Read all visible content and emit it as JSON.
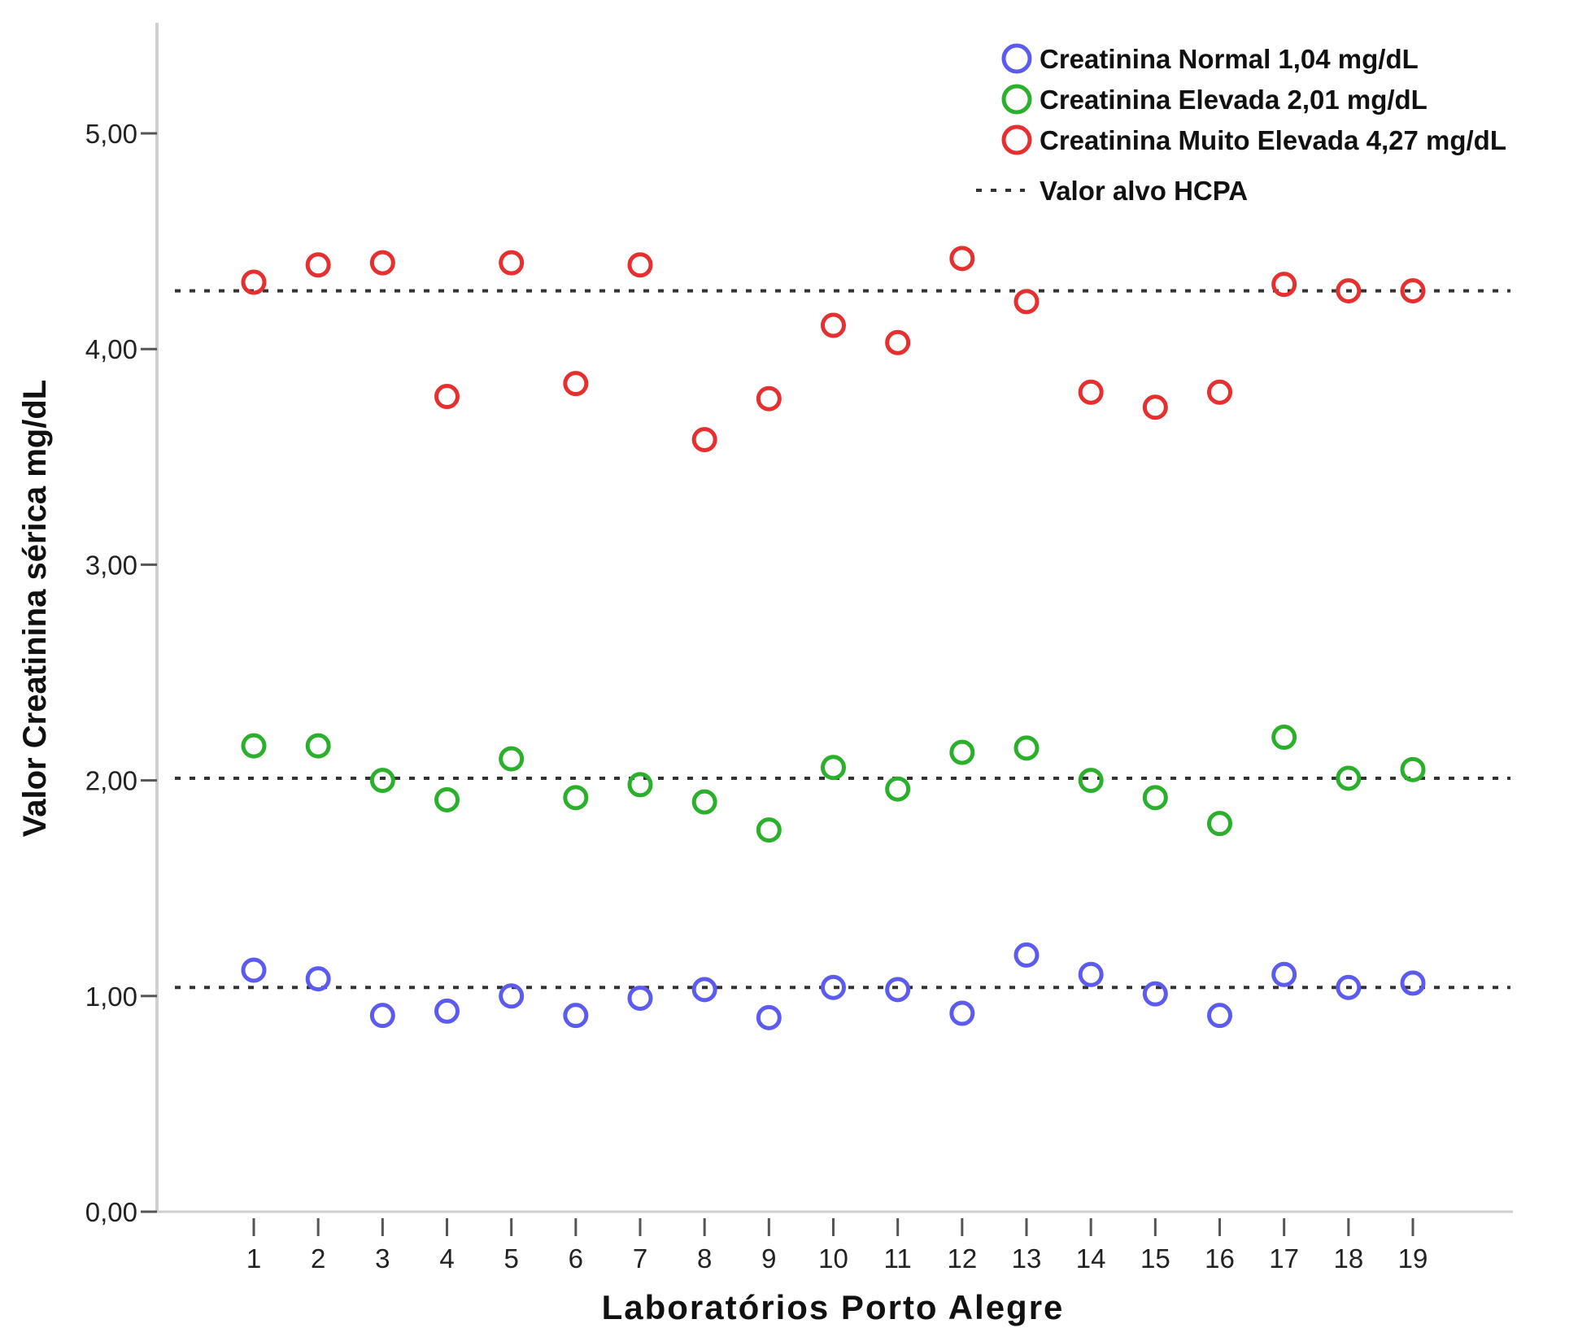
{
  "chart_data": {
    "type": "scatter",
    "xlabel": "Laboratórios Porto Alegre",
    "ylabel": "Valor Creatinina sérica mg/dL",
    "ylim": [
      0,
      5.5
    ],
    "yticks": [
      0,
      1,
      2,
      3,
      4,
      5
    ],
    "ytick_labels": [
      "0,00",
      "1,00",
      "2,00",
      "3,00",
      "4,00",
      "5,00"
    ],
    "x": [
      1,
      2,
      3,
      4,
      5,
      6,
      7,
      8,
      9,
      10,
      11,
      12,
      13,
      14,
      15,
      16,
      17,
      18,
      19
    ],
    "xtick_labels": [
      "1",
      "2",
      "3",
      "4",
      "5",
      "6",
      "7",
      "8",
      "9",
      "10",
      "11",
      "12",
      "13",
      "14",
      "15",
      "16",
      "17",
      "18",
      "19"
    ],
    "grid": false,
    "legend_position": "top-right",
    "series": [
      {
        "name": "Creatinina Normal 1,04 mg/dL",
        "color": "#5b5bf0",
        "values": [
          1.12,
          1.08,
          0.91,
          0.93,
          1.0,
          0.91,
          0.99,
          1.03,
          0.9,
          1.04,
          1.03,
          0.92,
          1.19,
          1.1,
          1.01,
          0.91,
          1.1,
          1.04,
          1.06
        ]
      },
      {
        "name": "Creatinina Elevada 2,01 mg/dL",
        "color": "#2bb02b",
        "values": [
          2.16,
          2.16,
          2.0,
          1.91,
          2.1,
          1.92,
          1.98,
          1.9,
          1.77,
          2.06,
          1.96,
          2.13,
          2.15,
          2.0,
          1.92,
          1.8,
          2.2,
          2.01,
          2.05
        ]
      },
      {
        "name": "Creatinina Muito Elevada 4,27 mg/dL",
        "color": "#e63030",
        "values": [
          4.31,
          4.39,
          4.4,
          3.78,
          4.4,
          3.84,
          4.39,
          3.58,
          3.77,
          4.11,
          4.03,
          4.42,
          4.22,
          3.8,
          3.73,
          3.8,
          4.3,
          4.27,
          4.27
        ]
      }
    ],
    "reference_lines": {
      "name": "Valor alvo HCPA",
      "values": [
        1.04,
        2.01,
        4.27
      ],
      "color": "#333333"
    }
  }
}
